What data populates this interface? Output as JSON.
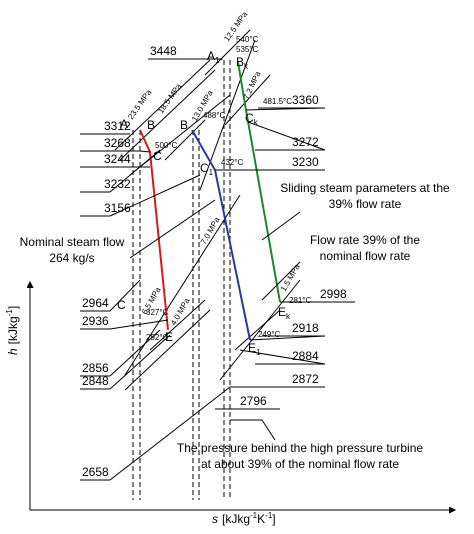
{
  "enthalpy_labels": [
    "3448",
    "3360",
    "3312",
    "3268",
    "3244",
    "3232",
    "3272",
    "3230",
    "3156",
    "2964",
    "2936",
    "2998",
    "2918",
    "2856",
    "2848",
    "2884",
    "2872",
    "2796",
    "2658"
  ],
  "points": [
    {
      "label": "A"
    },
    {
      "label": "B"
    },
    {
      "label": "C"
    },
    {
      "label": "B"
    },
    {
      "label": "C",
      "sub": "1"
    },
    {
      "label": "A",
      "sub": "1"
    },
    {
      "label": "B",
      "sub": "k"
    },
    {
      "label": "C",
      "sub": "k"
    },
    {
      "label": "E"
    },
    {
      "label": "E",
      "sub": "1"
    },
    {
      "label": "E",
      "sub": "k"
    },
    {
      "label": "C"
    }
  ],
  "pressures": [
    "12.5 MPa",
    "23.5 MPa",
    "18.5 MPa",
    "13.0 MPa",
    "7.2 MPa",
    "7.0 MPa",
    "6.5 MPa",
    "4.0 MPa",
    "1.5 MPa"
  ],
  "temperatures": [
    "540°C",
    "535°C",
    "481.5°C",
    "500°C",
    "488°C",
    "432°C",
    "281°C",
    "249°C",
    "327°C",
    "292°C"
  ],
  "annotations": [
    [
      "Sliding steam parameters at the",
      "39% flow rate"
    ],
    [
      "Flow rate 39% of the",
      "nominal flow rate"
    ],
    [
      "Nominal steam flow",
      "264 kg/s"
    ],
    [
      "The pressure behind the high pressure turbine",
      "at about 39% of the nominal flow rate"
    ]
  ],
  "y_axis": {
    "symbol": "h",
    "unit": "[kJkg",
    "exp": "-1",
    "close": "]"
  },
  "x_axis": {
    "symbol": "s",
    "unit": "[kJkg",
    "exp": "-1",
    "mid": "K",
    "exp2": "-1",
    "close": "]"
  }
}
